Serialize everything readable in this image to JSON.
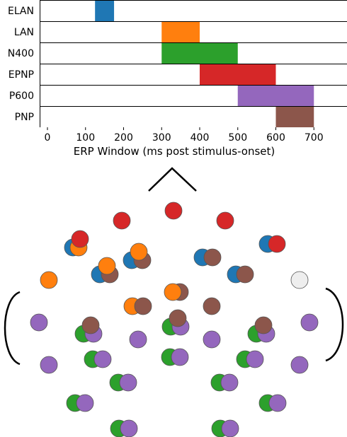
{
  "chart_data": [
    {
      "type": "bar",
      "orientation": "horizontal-range",
      "title": "",
      "xlabel": "ERP Window (ms post stimulus-onset)",
      "ylabel": "",
      "xlim": [
        -10,
        725
      ],
      "xticks": [
        0,
        100,
        200,
        300,
        400,
        500,
        600,
        700
      ],
      "grid": false,
      "categories": [
        "ELAN",
        "LAN",
        "N400",
        "EPNP",
        "P600",
        "PNP"
      ],
      "series": [
        {
          "name": "ELAN",
          "start": 125,
          "end": 175,
          "color": "#1f77b4"
        },
        {
          "name": "LAN",
          "start": 300,
          "end": 400,
          "color": "#ff7f0e"
        },
        {
          "name": "N400",
          "start": 300,
          "end": 500,
          "color": "#2ca02c"
        },
        {
          "name": "EPNP",
          "start": 400,
          "end": 600,
          "color": "#d62728"
        },
        {
          "name": "P600",
          "start": 500,
          "end": 700,
          "color": "#9467bd"
        },
        {
          "name": "PNP",
          "start": 600,
          "end": 700,
          "color": "#8c564b"
        }
      ]
    },
    {
      "type": "scatter",
      "description": "electrode head map; each electrode site is colored by the ERP component(s) detected there",
      "legend_colors": {
        "ELAN": "#1f77b4",
        "LAN": "#ff7f0e",
        "N400": "#2ca02c",
        "EPNP": "#d62728",
        "P600": "#9467bd",
        "PNP": "#8c564b",
        "none": "#eeeeee"
      },
      "electrodes": [
        {
          "components": [
            "EPNP"
          ]
        },
        {
          "components": [
            "EPNP"
          ]
        },
        {
          "components": [
            "EPNP"
          ]
        },
        {
          "components": [
            "ELAN",
            "LAN",
            "EPNP"
          ]
        },
        {
          "components": [
            "ELAN",
            "PNP",
            "LAN"
          ]
        },
        {
          "components": [
            "ELAN",
            "PNP"
          ]
        },
        {
          "components": [
            "ELAN",
            "EPNP"
          ]
        },
        {
          "components": [
            "LAN"
          ]
        },
        {
          "components": [
            "ELAN",
            "PNP",
            "LAN"
          ]
        },
        {
          "components": [
            "PNP",
            "LAN"
          ]
        },
        {
          "components": [
            "ELAN",
            "PNP"
          ]
        },
        {
          "components": []
        },
        {
          "components": [
            "LAN",
            "PNP"
          ]
        },
        {
          "components": [
            "PNP"
          ]
        },
        {
          "components": [
            "P600"
          ]
        },
        {
          "components": [
            "N400",
            "P600",
            "PNP"
          ]
        },
        {
          "components": [
            "P600"
          ]
        },
        {
          "components": [
            "N400",
            "P600",
            "PNP"
          ]
        },
        {
          "components": [
            "P600"
          ]
        },
        {
          "components": [
            "N400",
            "P600",
            "PNP"
          ]
        },
        {
          "components": [
            "P600"
          ]
        },
        {
          "components": [
            "P600"
          ]
        },
        {
          "components": [
            "N400",
            "P600"
          ]
        },
        {
          "components": [
            "N400",
            "P600"
          ]
        },
        {
          "components": [
            "N400",
            "P600"
          ]
        },
        {
          "components": [
            "P600"
          ]
        },
        {
          "components": [
            "N400",
            "P600"
          ]
        },
        {
          "components": [
            "N400",
            "P600"
          ]
        },
        {
          "components": [
            "N400",
            "P600"
          ]
        },
        {
          "components": [
            "N400",
            "P600"
          ]
        },
        {
          "components": [
            "N400",
            "P600"
          ]
        },
        {
          "components": [
            "N400",
            "P600"
          ]
        }
      ]
    }
  ]
}
